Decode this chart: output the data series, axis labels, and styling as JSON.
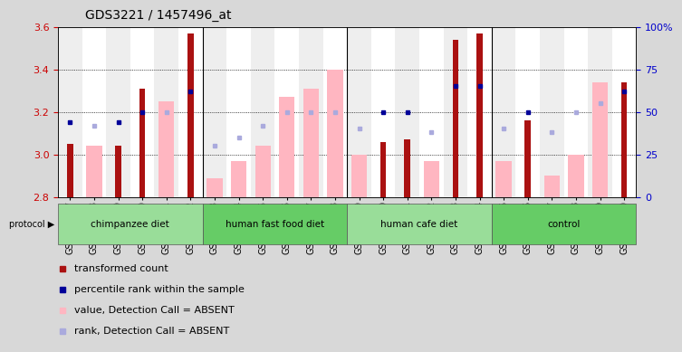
{
  "title": "GDS3221 / 1457496_at",
  "samples": [
    "GSM144707",
    "GSM144708",
    "GSM144709",
    "GSM144710",
    "GSM144711",
    "GSM144712",
    "GSM144713",
    "GSM144714",
    "GSM144715",
    "GSM144716",
    "GSM144717",
    "GSM144718",
    "GSM144719",
    "GSM144720",
    "GSM144721",
    "GSM144722",
    "GSM144723",
    "GSM144724",
    "GSM144725",
    "GSM144726",
    "GSM144727",
    "GSM144728",
    "GSM144729",
    "GSM144730"
  ],
  "transformed_count": [
    3.05,
    null,
    3.04,
    3.31,
    null,
    3.57,
    null,
    null,
    null,
    null,
    null,
    null,
    null,
    3.06,
    3.07,
    null,
    3.54,
    3.57,
    null,
    3.16,
    null,
    null,
    null,
    3.34
  ],
  "value_absent": [
    null,
    3.04,
    null,
    null,
    3.25,
    null,
    2.89,
    2.97,
    3.04,
    3.27,
    3.31,
    3.4,
    3.0,
    null,
    null,
    2.97,
    null,
    null,
    2.97,
    null,
    2.9,
    3.0,
    3.34,
    null
  ],
  "percentile_present": [
    44,
    null,
    44,
    50,
    null,
    62,
    null,
    null,
    null,
    null,
    null,
    null,
    null,
    50,
    50,
    null,
    65,
    65,
    null,
    50,
    null,
    null,
    null,
    62
  ],
  "rank_absent": [
    null,
    42,
    null,
    null,
    50,
    null,
    30,
    35,
    42,
    50,
    50,
    50,
    40,
    null,
    null,
    38,
    null,
    null,
    40,
    null,
    38,
    50,
    55,
    null
  ],
  "groups": [
    {
      "label": "chimpanzee diet",
      "start": 0,
      "end": 6
    },
    {
      "label": "human fast food diet",
      "start": 6,
      "end": 12
    },
    {
      "label": "human cafe diet",
      "start": 12,
      "end": 18
    },
    {
      "label": "control",
      "start": 18,
      "end": 24
    }
  ],
  "ylim_left": [
    2.8,
    3.6
  ],
  "ylim_right": [
    0,
    100
  ],
  "yticks_left": [
    2.8,
    3.0,
    3.2,
    3.4,
    3.6
  ],
  "yticks_right": [
    0,
    25,
    50,
    75,
    100
  ],
  "grid_lines": [
    3.0,
    3.2,
    3.4
  ],
  "bar_color_present": "#AA1111",
  "bar_color_absent": "#FFB6C1",
  "dot_color_present": "#000099",
  "dot_color_absent": "#AAAADD",
  "background_color": "#D8D8D8",
  "plot_bg": "#FFFFFF",
  "group_colors": [
    "#99DD99",
    "#66CC66",
    "#99DD99",
    "#66CC66"
  ],
  "title_fontsize": 10,
  "axis_fontsize": 8,
  "tick_fontsize": 7,
  "legend_fontsize": 8,
  "label_color_left": "#CC0000",
  "label_color_right": "#0000CC"
}
